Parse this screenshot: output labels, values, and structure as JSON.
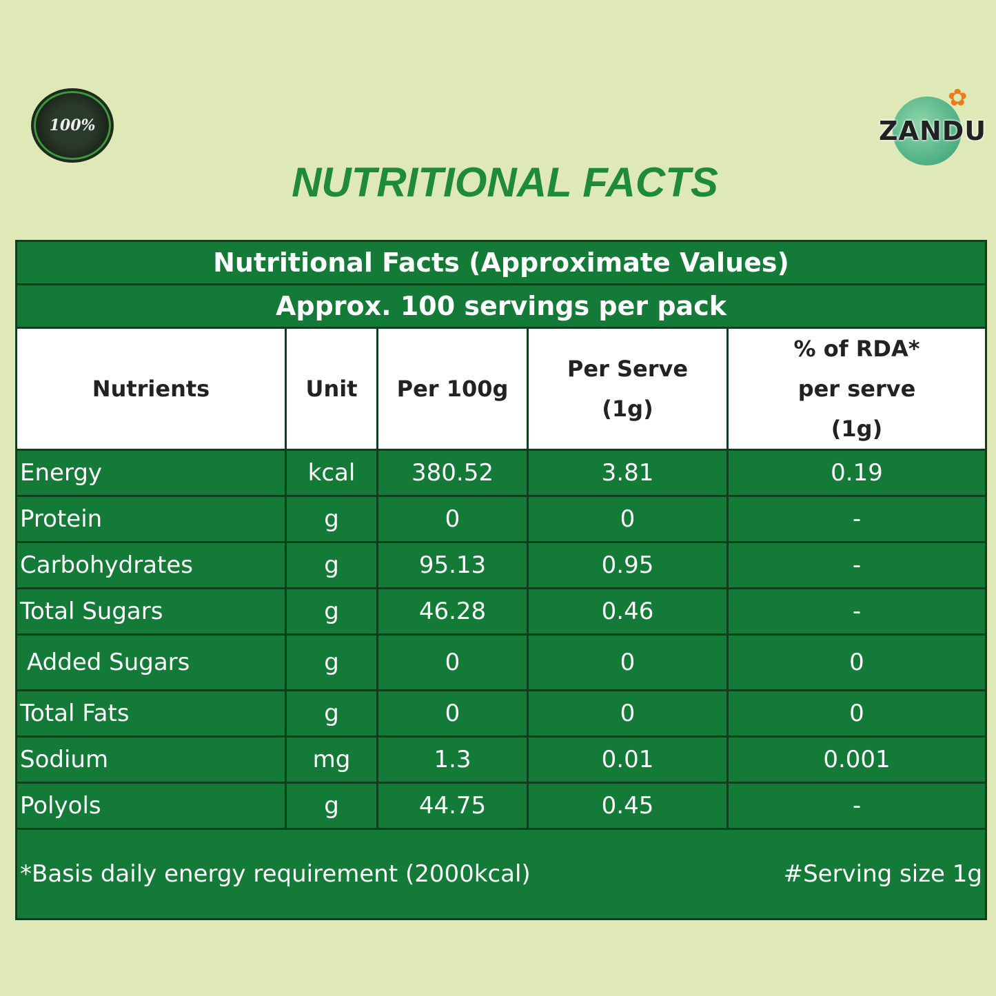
{
  "badge": {
    "text": "100%"
  },
  "logo": {
    "text": "ZANDU"
  },
  "heading": "NUTRITIONAL FACTS",
  "table": {
    "caption": "Nutritional Facts (Approximate Values)",
    "subcaption": "Approx. 100 servings per pack",
    "headers": [
      "Nutrients",
      "Unit",
      "Per 100g",
      "Per Serve (1g)",
      "% of RDA* per serve (1g)"
    ],
    "rows": [
      [
        "Energy",
        "kcal",
        "380.52",
        "3.81",
        "0.19"
      ],
      [
        "Protein",
        "g",
        "0",
        "0",
        "-"
      ],
      [
        "Carbohydrates",
        "g",
        "95.13",
        "0.95",
        "-"
      ],
      [
        "Total Sugars",
        "g",
        "46.28",
        "0.46",
        "-"
      ],
      [
        " Added Sugars",
        "g",
        "0",
        "0",
        "0"
      ],
      [
        "Total Fats",
        "g",
        "0",
        "0",
        "0"
      ],
      [
        "Sodium",
        "mg",
        "1.3",
        "0.01",
        "0.001"
      ],
      [
        "Polyols",
        "g",
        "44.75",
        "0.45",
        "-"
      ]
    ],
    "footnote_left": "*Basis daily energy requirement (2000kcal)",
    "footnote_right": "#Serving size 1g"
  },
  "colors": {
    "background": "#dfe9b8",
    "table_green": "#147a37",
    "heading_green": "#1e8a3a"
  }
}
